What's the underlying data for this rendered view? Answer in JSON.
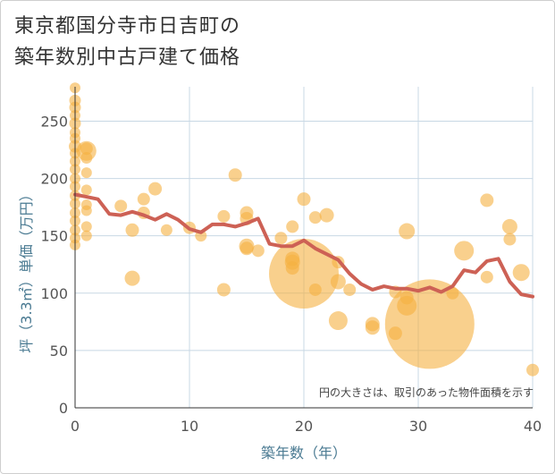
{
  "title_line1": "東京都国分寺市日吉町の",
  "title_line2": "築年数別中古戸建て価格",
  "note": "円の大きさは、取引のあった物件面積を示す",
  "chart_data": {
    "type": "scatter",
    "xlabel": "築年数（年）",
    "ylabel": "坪（3.3㎡）単価（万円）",
    "xlim": [
      0,
      40
    ],
    "ylim": [
      0,
      280
    ],
    "xticks": [
      0,
      10,
      20,
      30,
      40
    ],
    "yticks": [
      0,
      50,
      100,
      150,
      200,
      250
    ],
    "grid": true,
    "colors": {
      "points": "#f5b041",
      "line": "#cd6155",
      "grid": "#c8d8e4"
    },
    "points": [
      {
        "x": 0,
        "y": 279,
        "size": 12
      },
      {
        "x": 0,
        "y": 268,
        "size": 13
      },
      {
        "x": 0,
        "y": 262,
        "size": 13
      },
      {
        "x": 0,
        "y": 255,
        "size": 12
      },
      {
        "x": 0,
        "y": 248,
        "size": 13
      },
      {
        "x": 0,
        "y": 240,
        "size": 12
      },
      {
        "x": 0,
        "y": 235,
        "size": 12
      },
      {
        "x": 0,
        "y": 228,
        "size": 14
      },
      {
        "x": 0,
        "y": 222,
        "size": 12
      },
      {
        "x": 0,
        "y": 215,
        "size": 12
      },
      {
        "x": 0,
        "y": 208,
        "size": 12
      },
      {
        "x": 0,
        "y": 200,
        "size": 12
      },
      {
        "x": 0,
        "y": 193,
        "size": 12
      },
      {
        "x": 0,
        "y": 185,
        "size": 12
      },
      {
        "x": 0,
        "y": 178,
        "size": 12
      },
      {
        "x": 0,
        "y": 170,
        "size": 12
      },
      {
        "x": 0,
        "y": 163,
        "size": 12
      },
      {
        "x": 0,
        "y": 155,
        "size": 12
      },
      {
        "x": 0,
        "y": 148,
        "size": 12
      },
      {
        "x": 0,
        "y": 142,
        "size": 12
      },
      {
        "x": 1,
        "y": 224,
        "size": 22
      },
      {
        "x": 1,
        "y": 226,
        "size": 14
      },
      {
        "x": 1,
        "y": 218,
        "size": 13
      },
      {
        "x": 1,
        "y": 205,
        "size": 12
      },
      {
        "x": 1,
        "y": 190,
        "size": 12
      },
      {
        "x": 1,
        "y": 177,
        "size": 12
      },
      {
        "x": 1,
        "y": 172,
        "size": 12
      },
      {
        "x": 1,
        "y": 158,
        "size": 12
      },
      {
        "x": 1,
        "y": 150,
        "size": 12
      },
      {
        "x": 4,
        "y": 176,
        "size": 14
      },
      {
        "x": 5,
        "y": 155,
        "size": 15
      },
      {
        "x": 5,
        "y": 113,
        "size": 17
      },
      {
        "x": 6,
        "y": 182,
        "size": 14
      },
      {
        "x": 6,
        "y": 170,
        "size": 14
      },
      {
        "x": 7,
        "y": 191,
        "size": 15
      },
      {
        "x": 8,
        "y": 155,
        "size": 13
      },
      {
        "x": 10,
        "y": 157,
        "size": 14
      },
      {
        "x": 11,
        "y": 150,
        "size": 13
      },
      {
        "x": 13,
        "y": 167,
        "size": 14
      },
      {
        "x": 13,
        "y": 103,
        "size": 15
      },
      {
        "x": 14,
        "y": 203,
        "size": 15
      },
      {
        "x": 15,
        "y": 170,
        "size": 15
      },
      {
        "x": 15,
        "y": 165,
        "size": 15
      },
      {
        "x": 15,
        "y": 141,
        "size": 17
      },
      {
        "x": 15,
        "y": 139,
        "size": 15
      },
      {
        "x": 16,
        "y": 137,
        "size": 14
      },
      {
        "x": 18,
        "y": 148,
        "size": 14
      },
      {
        "x": 19,
        "y": 158,
        "size": 14
      },
      {
        "x": 19,
        "y": 130,
        "size": 16
      },
      {
        "x": 19,
        "y": 127,
        "size": 17
      },
      {
        "x": 19,
        "y": 122,
        "size": 15
      },
      {
        "x": 20,
        "y": 182,
        "size": 15
      },
      {
        "x": 20,
        "y": 117,
        "size": 78
      },
      {
        "x": 21,
        "y": 166,
        "size": 14
      },
      {
        "x": 21,
        "y": 103,
        "size": 14
      },
      {
        "x": 22,
        "y": 168,
        "size": 16
      },
      {
        "x": 23,
        "y": 127,
        "size": 14
      },
      {
        "x": 23,
        "y": 110,
        "size": 17
      },
      {
        "x": 23,
        "y": 76,
        "size": 21
      },
      {
        "x": 24,
        "y": 103,
        "size": 14
      },
      {
        "x": 26,
        "y": 73,
        "size": 16
      },
      {
        "x": 26,
        "y": 70,
        "size": 16
      },
      {
        "x": 28,
        "y": 101,
        "size": 14
      },
      {
        "x": 28,
        "y": 65,
        "size": 15
      },
      {
        "x": 29,
        "y": 154,
        "size": 18
      },
      {
        "x": 29,
        "y": 89,
        "size": 22
      },
      {
        "x": 29,
        "y": 96,
        "size": 15
      },
      {
        "x": 31,
        "y": 73,
        "size": 100
      },
      {
        "x": 33,
        "y": 100,
        "size": 14
      },
      {
        "x": 34,
        "y": 137,
        "size": 22
      },
      {
        "x": 36,
        "y": 181,
        "size": 15
      },
      {
        "x": 36,
        "y": 114,
        "size": 14
      },
      {
        "x": 38,
        "y": 158,
        "size": 17
      },
      {
        "x": 38,
        "y": 147,
        "size": 14
      },
      {
        "x": 39,
        "y": 118,
        "size": 19
      },
      {
        "x": 40,
        "y": 33,
        "size": 14
      }
    ],
    "trend_line": {
      "x": [
        0,
        1,
        2,
        3,
        4,
        5,
        6,
        7,
        8,
        9,
        10,
        11,
        12,
        13,
        14,
        15,
        16,
        17,
        18,
        19,
        20,
        21,
        22,
        23,
        24,
        25,
        26,
        27,
        28,
        29,
        30,
        31,
        32,
        33,
        34,
        35,
        36,
        37,
        38,
        39,
        40
      ],
      "y": [
        186,
        184,
        182,
        169,
        168,
        171,
        168,
        164,
        169,
        164,
        156,
        153,
        160,
        160,
        158,
        161,
        165,
        143,
        141,
        141,
        146,
        139,
        134,
        129,
        117,
        108,
        103,
        106,
        104,
        104,
        102,
        105,
        101,
        106,
        120,
        118,
        128,
        130,
        110,
        99,
        97
      ]
    }
  }
}
